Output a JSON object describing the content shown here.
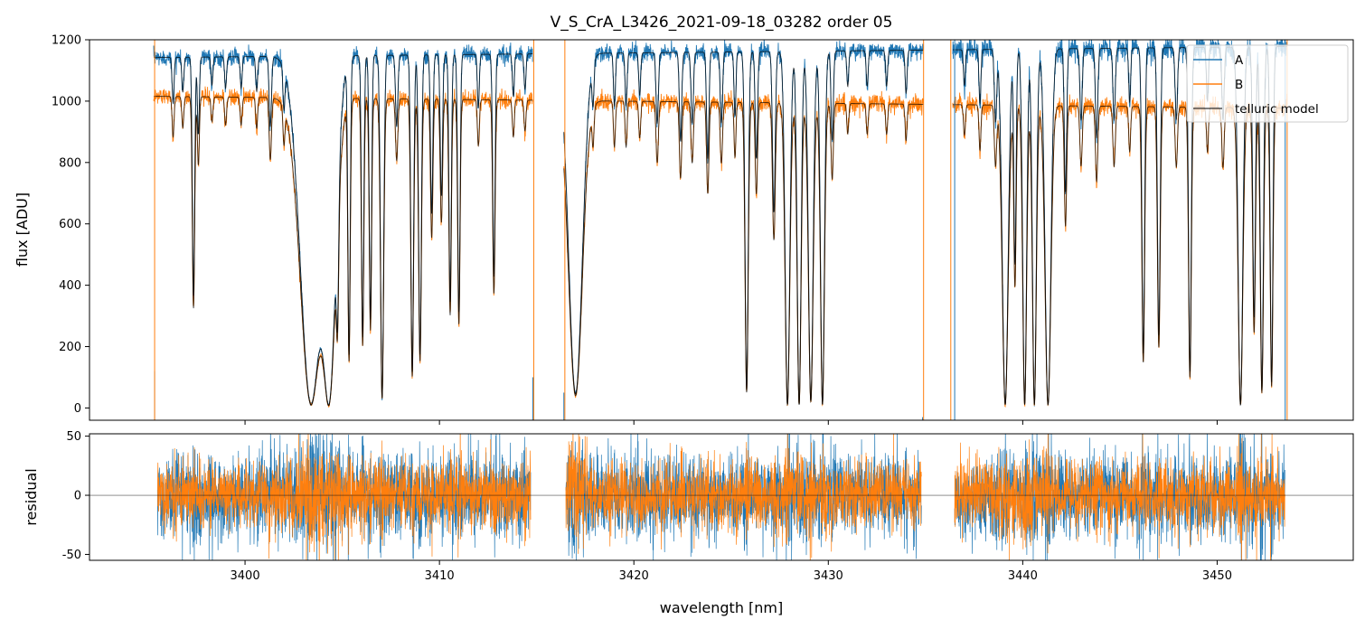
{
  "chart_data": [
    {
      "panel": "top",
      "type": "line",
      "title": "V_S_CrA_L3426_2021-09-18_03282  order 05",
      "xlabel": "",
      "ylabel": "flux [ADU]",
      "xlim": [
        3392,
        3457
      ],
      "ylim": [
        -40,
        1200
      ],
      "yticks": [
        0,
        200,
        400,
        600,
        800,
        1000,
        1200
      ],
      "xticks": [
        3400,
        3410,
        3420,
        3430,
        3440,
        3450
      ],
      "xtick_labels_shown": false,
      "grid": false,
      "legend": {
        "placement": "top-right",
        "entries": [
          "A",
          "B",
          "telluric model"
        ]
      },
      "segments": [
        [
          3395.3,
          3414.8
        ],
        [
          3416.4,
          3434.9
        ],
        [
          3436.4,
          3453.6
        ]
      ],
      "series": [
        {
          "name": "A",
          "color": "#1f77b4",
          "continuum_start": 1140,
          "continuum_end": 1180,
          "noise": 14
        },
        {
          "name": "B",
          "color": "#ff7f0e",
          "continuum_start": 1018,
          "continuum_end": 975,
          "noise": 14
        },
        {
          "name": "telluric model",
          "color": "#000000"
        }
      ],
      "absorption_lines": [
        [
          3396.3,
          0.13,
          0.05
        ],
        [
          3396.8,
          0.1,
          0.05
        ],
        [
          3397.35,
          0.68,
          0.06
        ],
        [
          3397.6,
          0.22,
          0.05
        ],
        [
          3398.3,
          0.08,
          0.05
        ],
        [
          3399.0,
          0.09,
          0.05
        ],
        [
          3399.8,
          0.09,
          0.05
        ],
        [
          3400.6,
          0.1,
          0.05
        ],
        [
          3401.3,
          0.2,
          0.06
        ],
        [
          3402.0,
          0.12,
          0.05
        ],
        [
          3403.4,
          0.99,
          0.55
        ],
        [
          3404.3,
          0.99,
          0.35
        ],
        [
          3404.75,
          0.6,
          0.06
        ],
        [
          3405.35,
          0.85,
          0.06
        ],
        [
          3406.05,
          0.8,
          0.06
        ],
        [
          3406.45,
          0.75,
          0.06
        ],
        [
          3407.05,
          0.97,
          0.08
        ],
        [
          3407.8,
          0.2,
          0.06
        ],
        [
          3408.6,
          0.9,
          0.07
        ],
        [
          3409.0,
          0.85,
          0.07
        ],
        [
          3409.6,
          0.45,
          0.06
        ],
        [
          3410.1,
          0.4,
          0.06
        ],
        [
          3410.55,
          0.7,
          0.06
        ],
        [
          3411.0,
          0.73,
          0.06
        ],
        [
          3412.0,
          0.15,
          0.05
        ],
        [
          3412.8,
          0.63,
          0.06
        ],
        [
          3413.8,
          0.12,
          0.05
        ],
        [
          3414.4,
          0.1,
          0.05
        ],
        [
          3417.0,
          0.96,
          0.35
        ],
        [
          3417.9,
          0.12,
          0.05
        ],
        [
          3419.0,
          0.15,
          0.05
        ],
        [
          3419.6,
          0.15,
          0.05
        ],
        [
          3420.3,
          0.12,
          0.05
        ],
        [
          3421.2,
          0.2,
          0.06
        ],
        [
          3422.4,
          0.25,
          0.06
        ],
        [
          3423.0,
          0.2,
          0.06
        ],
        [
          3423.8,
          0.3,
          0.06
        ],
        [
          3424.5,
          0.2,
          0.06
        ],
        [
          3425.2,
          0.18,
          0.05
        ],
        [
          3425.8,
          0.95,
          0.08
        ],
        [
          3426.3,
          0.3,
          0.06
        ],
        [
          3427.2,
          0.45,
          0.07
        ],
        [
          3427.9,
          0.99,
          0.12
        ],
        [
          3428.5,
          0.99,
          0.1
        ],
        [
          3429.1,
          0.98,
          0.12
        ],
        [
          3429.7,
          0.99,
          0.1
        ],
        [
          3430.2,
          0.25,
          0.06
        ],
        [
          3431.0,
          0.1,
          0.05
        ],
        [
          3432.0,
          0.1,
          0.05
        ],
        [
          3433.0,
          0.1,
          0.05
        ],
        [
          3434.0,
          0.12,
          0.05
        ],
        [
          3437.0,
          0.1,
          0.05
        ],
        [
          3437.8,
          0.15,
          0.05
        ],
        [
          3438.6,
          0.2,
          0.06
        ],
        [
          3439.1,
          0.99,
          0.15
        ],
        [
          3439.6,
          0.6,
          0.06
        ],
        [
          3440.1,
          0.99,
          0.1
        ],
        [
          3440.6,
          0.99,
          0.1
        ],
        [
          3441.3,
          0.99,
          0.15
        ],
        [
          3442.2,
          0.4,
          0.06
        ],
        [
          3443.0,
          0.2,
          0.06
        ],
        [
          3443.8,
          0.25,
          0.06
        ],
        [
          3444.7,
          0.2,
          0.06
        ],
        [
          3445.5,
          0.15,
          0.05
        ],
        [
          3446.2,
          0.85,
          0.07
        ],
        [
          3447.0,
          0.8,
          0.07
        ],
        [
          3447.9,
          0.2,
          0.06
        ],
        [
          3448.6,
          0.9,
          0.07
        ],
        [
          3449.5,
          0.15,
          0.05
        ],
        [
          3450.3,
          0.2,
          0.06
        ],
        [
          3451.2,
          0.99,
          0.12
        ],
        [
          3451.9,
          0.75,
          0.07
        ],
        [
          3452.3,
          0.95,
          0.08
        ],
        [
          3452.8,
          0.93,
          0.07
        ]
      ],
      "spikes": [
        [
          3395.35,
          1,
          0.12
        ],
        [
          3395.35,
          2,
          1.25
        ],
        [
          3414.8,
          1,
          0.1
        ],
        [
          3414.85,
          2,
          1.3
        ],
        [
          3416.4,
          1,
          0.05
        ],
        [
          3416.45,
          2,
          1.3
        ],
        [
          3434.85,
          1,
          -0.03
        ],
        [
          3434.9,
          2,
          1.3
        ],
        [
          3436.3,
          2,
          1.3
        ],
        [
          3436.5,
          1,
          1.3
        ],
        [
          3453.6,
          2,
          1.3
        ],
        [
          3453.5,
          1,
          1.3
        ]
      ]
    },
    {
      "panel": "bottom",
      "type": "line",
      "title": "",
      "xlabel": "wavelength [nm]",
      "ylabel": "residual",
      "xlim": [
        3392,
        3457
      ],
      "ylim": [
        -55,
        52
      ],
      "yticks": [
        -50,
        0,
        50
      ],
      "xticks": [
        3400,
        3410,
        3420,
        3430,
        3440,
        3450
      ],
      "grid": false,
      "zero_line": 0,
      "segments": [
        [
          3395.5,
          3414.7
        ],
        [
          3416.5,
          3434.8
        ],
        [
          3436.5,
          3453.5
        ]
      ],
      "series": [
        {
          "name": "A",
          "color": "#1f77b4",
          "amplitude": 17
        },
        {
          "name": "B",
          "color": "#ff7f0e",
          "amplitude": 14
        }
      ]
    }
  ]
}
